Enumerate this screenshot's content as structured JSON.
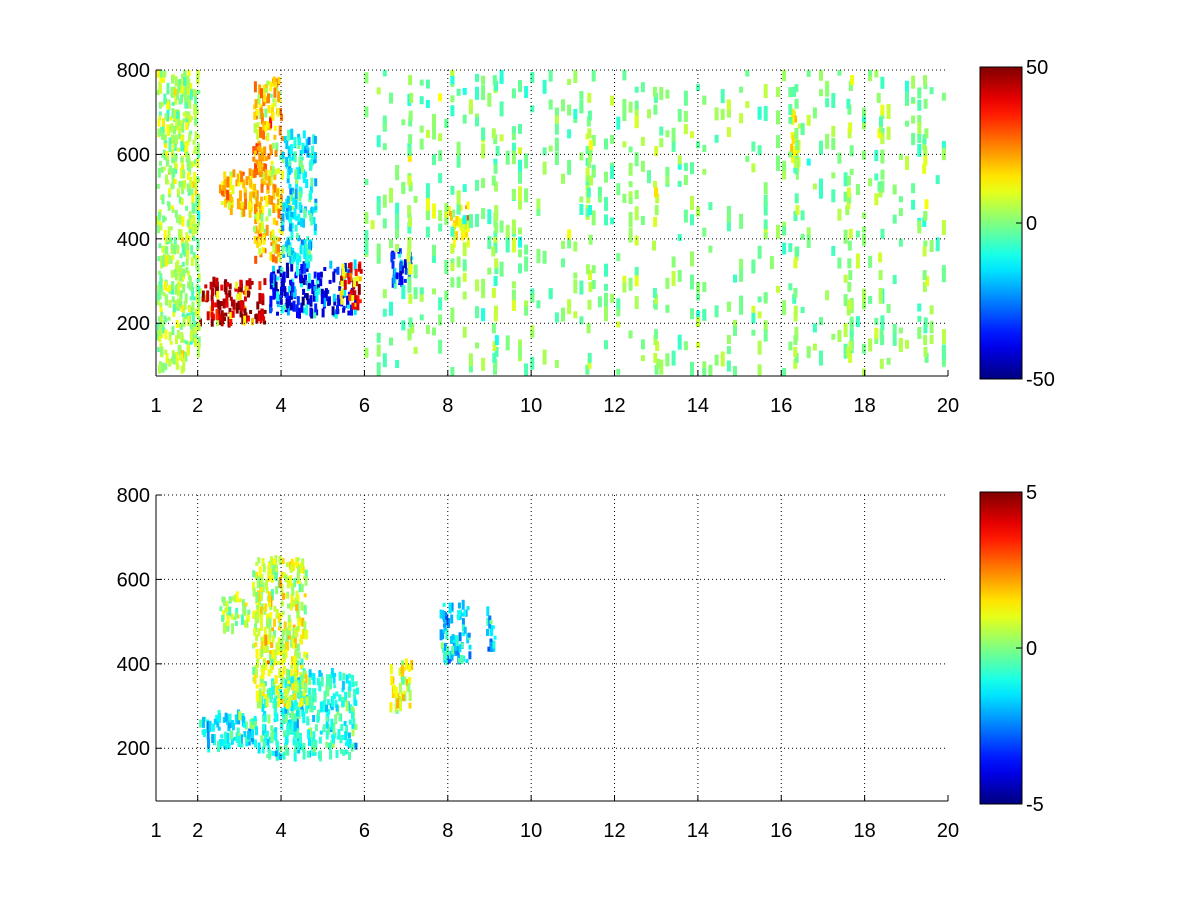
{
  "chart_data": [
    {
      "type": "heatmap",
      "title": "",
      "xlabel": "",
      "ylabel": "",
      "xlim": [
        1,
        20
      ],
      "ylim": [
        75,
        800
      ],
      "grid": true,
      "colormap": "jet",
      "x_ticks": [
        1,
        2,
        4,
        6,
        8,
        10,
        12,
        14,
        16,
        18,
        20
      ],
      "x_tick_labels": [
        "1",
        "2",
        "4",
        "6",
        "8",
        "10",
        "12",
        "14",
        "16",
        "18",
        "20"
      ],
      "y_ticks": [
        200,
        400,
        600,
        800
      ],
      "y_tick_labels": [
        "200",
        "400",
        "600",
        "800"
      ],
      "colorbar": {
        "range": [
          -50,
          50
        ],
        "ticks": [
          50,
          0,
          -50
        ],
        "tick_labels": [
          "50",
          "0",
          "-50"
        ]
      },
      "features": [
        {
          "x": [
            2.0,
            3.6
          ],
          "y": [
            200,
            300
          ],
          "value": 45
        },
        {
          "x": [
            3.7,
            5.8
          ],
          "y": [
            220,
            340
          ],
          "value": -40
        },
        {
          "x": [
            5.4,
            5.9
          ],
          "y": [
            240,
            340
          ],
          "value": 40
        },
        {
          "x": [
            6.6,
            7.1
          ],
          "y": [
            290,
            380
          ],
          "value": -35
        },
        {
          "x": [
            2.5,
            3.3
          ],
          "y": [
            460,
            560
          ],
          "value": 20
        },
        {
          "x": [
            3.3,
            4.0
          ],
          "y": [
            350,
            780
          ],
          "value": 20
        },
        {
          "x": [
            4.0,
            4.8
          ],
          "y": [
            350,
            650
          ],
          "value": -15
        },
        {
          "x": [
            8.0,
            8.5
          ],
          "y": [
            390,
            480
          ],
          "value": 15
        },
        {
          "x": [
            16.2,
            16.4
          ],
          "y": [
            530,
            700
          ],
          "value": 12
        },
        {
          "x": [
            1.0,
            2.0
          ],
          "y": [
            80,
            800
          ],
          "value": 5
        },
        {
          "x": [
            6.0,
            20.0
          ],
          "y": [
            80,
            800
          ],
          "value": 0
        }
      ]
    },
    {
      "type": "heatmap",
      "title": "",
      "xlabel": "",
      "ylabel": "",
      "xlim": [
        1,
        20
      ],
      "ylim": [
        75,
        800
      ],
      "grid": true,
      "colormap": "jet",
      "x_ticks": [
        1,
        2,
        4,
        6,
        8,
        10,
        12,
        14,
        16,
        18,
        20
      ],
      "x_tick_labels": [
        "1",
        "2",
        "4",
        "6",
        "8",
        "10",
        "12",
        "14",
        "16",
        "18",
        "20"
      ],
      "y_ticks": [
        200,
        400,
        600,
        800
      ],
      "y_tick_labels": [
        "200",
        "400",
        "600",
        "800"
      ],
      "colorbar": {
        "range": [
          -5,
          5
        ],
        "ticks": [
          5,
          0,
          -5
        ],
        "tick_labels": [
          "5",
          "0",
          "-5"
        ]
      },
      "features": [
        {
          "x": [
            2.0,
            3.6
          ],
          "y": [
            200,
            280
          ],
          "value": -1.5
        },
        {
          "x": [
            3.5,
            5.8
          ],
          "y": [
            180,
            380
          ],
          "value": -1.0
        },
        {
          "x": [
            3.3,
            4.6
          ],
          "y": [
            300,
            650
          ],
          "value": 1.0
        },
        {
          "x": [
            2.5,
            3.2
          ],
          "y": [
            480,
            560
          ],
          "value": 0.5
        },
        {
          "x": [
            6.6,
            7.1
          ],
          "y": [
            280,
            400
          ],
          "value": 1.5
        },
        {
          "x": [
            7.8,
            8.5
          ],
          "y": [
            400,
            540
          ],
          "value": -2.0
        },
        {
          "x": [
            8.9,
            9.1
          ],
          "y": [
            430,
            530
          ],
          "value": -2.0
        }
      ]
    }
  ]
}
